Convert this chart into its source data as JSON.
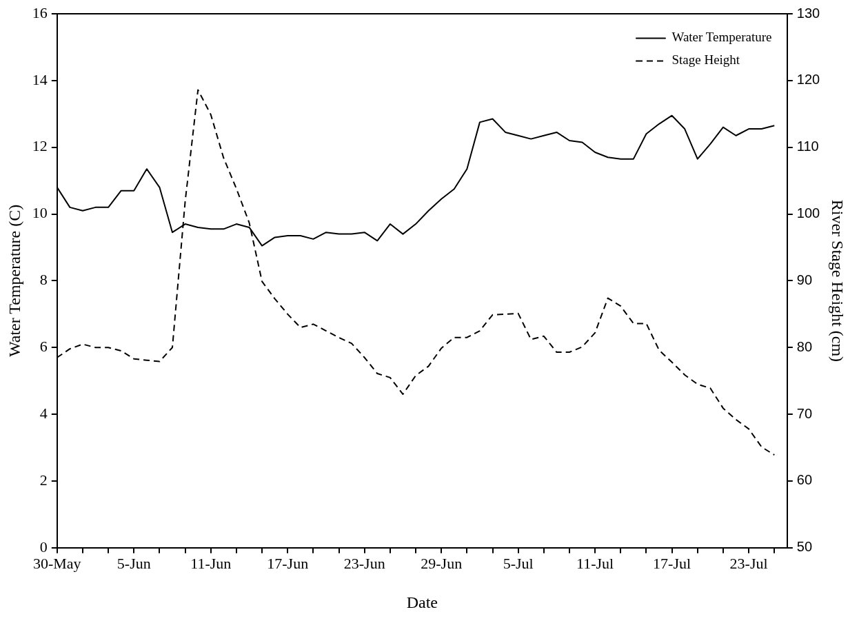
{
  "chart_data": {
    "type": "line",
    "xlabel": "Date",
    "ylabel": "Water Temperature (C)",
    "y2label": "River Stage Height (cm)",
    "x": [
      "--05-30",
      "--05-31",
      "--06-01",
      "--06-02",
      "--06-03",
      "--06-04",
      "--06-05",
      "--06-06",
      "--06-07",
      "--06-08",
      "--06-09",
      "--06-10",
      "--06-11",
      "--06-12",
      "--06-13",
      "--06-14",
      "--06-15",
      "--06-16",
      "--06-17",
      "--06-18",
      "--06-19",
      "--06-20",
      "--06-21",
      "--06-22",
      "--06-23",
      "--06-24",
      "--06-25",
      "--06-26",
      "--06-27",
      "--06-28",
      "--06-29",
      "--06-30",
      "--07-01",
      "--07-02",
      "--07-03",
      "--07-04",
      "--07-05",
      "--07-06",
      "--07-07",
      "--07-08",
      "--07-09",
      "--07-10",
      "--07-11",
      "--07-12",
      "--07-13",
      "--07-14",
      "--07-15",
      "--07-16",
      "--07-17",
      "--07-18",
      "--07-19",
      "--07-20",
      "--07-21",
      "--07-22",
      "--07-23",
      "--07-24",
      "--07-25"
    ],
    "series": [
      {
        "name": "Water Temperature",
        "color": "#000000",
        "line_style": "solid",
        "values": [
          10.8,
          10.2,
          10.1,
          10.2,
          10.2,
          10.7,
          10.7,
          11.35,
          10.8,
          9.45,
          9.7,
          9.6,
          9.55,
          9.55,
          9.7,
          9.6,
          9.05,
          9.3,
          9.35,
          9.35,
          9.25,
          9.45,
          9.4,
          9.4,
          9.45,
          9.2,
          9.7,
          9.4,
          9.7,
          10.1,
          10.45,
          10.75,
          11.35,
          12.75,
          12.85,
          12.45,
          12.35,
          12.25,
          12.35,
          12.45,
          12.2,
          12.15,
          11.85,
          11.7,
          11.65,
          11.65,
          12.4,
          12.7,
          12.95,
          12.55,
          11.65,
          12.1,
          12.6,
          12.35,
          12.55,
          12.55,
          12.65
        ]
      },
      {
        "name": "Stage Height",
        "color": "#000000",
        "line_style": "dashed",
        "axis": "y2",
        "values": [
          78.5,
          79.8,
          80.5,
          80.0,
          80.0,
          79.5,
          78.3,
          78.1,
          77.9,
          80.0,
          101.9,
          118.6,
          114.9,
          108.4,
          103.8,
          98.7,
          89.9,
          87.3,
          85.0,
          83.0,
          83.5,
          82.5,
          81.5,
          80.6,
          78.5,
          76.1,
          75.5,
          73.0,
          75.8,
          77.2,
          79.9,
          81.5,
          81.5,
          82.5,
          84.9,
          85.0,
          85.1,
          81.2,
          81.7,
          79.3,
          79.3,
          80.1,
          82.2,
          87.4,
          86.2,
          83.6,
          83.6,
          79.6,
          77.8,
          75.9,
          74.5,
          73.9,
          70.9,
          69.2,
          67.8,
          65.1,
          63.9
        ]
      }
    ],
    "xlim": [
      "--05-30",
      "--07-26"
    ],
    "xticks": [
      {
        "value": "--05-30",
        "label": "30-May"
      },
      {
        "value": "--06-01",
        "label": null
      },
      {
        "value": "--06-03",
        "label": null
      },
      {
        "value": "--06-05",
        "label": "5-Jun"
      },
      {
        "value": "--06-07",
        "label": null
      },
      {
        "value": "--06-09",
        "label": null
      },
      {
        "value": "--06-11",
        "label": "11-Jun"
      },
      {
        "value": "--06-13",
        "label": null
      },
      {
        "value": "--06-15",
        "label": null
      },
      {
        "value": "--06-17",
        "label": "17-Jun"
      },
      {
        "value": "--06-19",
        "label": null
      },
      {
        "value": "--06-21",
        "label": null
      },
      {
        "value": "--06-23",
        "label": "23-Jun"
      },
      {
        "value": "--06-25",
        "label": null
      },
      {
        "value": "--06-27",
        "label": null
      },
      {
        "value": "--06-29",
        "label": "29-Jun"
      },
      {
        "value": "--07-01",
        "label": null
      },
      {
        "value": "--07-03",
        "label": null
      },
      {
        "value": "--07-05",
        "label": "5-Jul"
      },
      {
        "value": "--07-07",
        "label": null
      },
      {
        "value": "--07-09",
        "label": null
      },
      {
        "value": "--07-11",
        "label": "11-Jul"
      },
      {
        "value": "--07-13",
        "label": null
      },
      {
        "value": "--07-15",
        "label": null
      },
      {
        "value": "--07-17",
        "label": "17-Jul"
      },
      {
        "value": "--07-19",
        "label": null
      },
      {
        "value": "--07-21",
        "label": null
      },
      {
        "value": "--07-23",
        "label": "23-Jul"
      },
      {
        "value": "--07-25",
        "label": null
      }
    ],
    "ylim": [
      0,
      16
    ],
    "yticks": [
      0,
      2,
      4,
      6,
      8,
      10,
      12,
      14,
      16
    ],
    "y2lim": [
      50,
      130
    ],
    "y2ticks": [
      50,
      60,
      70,
      80,
      90,
      100,
      110,
      120,
      130
    ],
    "grid": false,
    "legend": "top right",
    "marker": "none"
  }
}
